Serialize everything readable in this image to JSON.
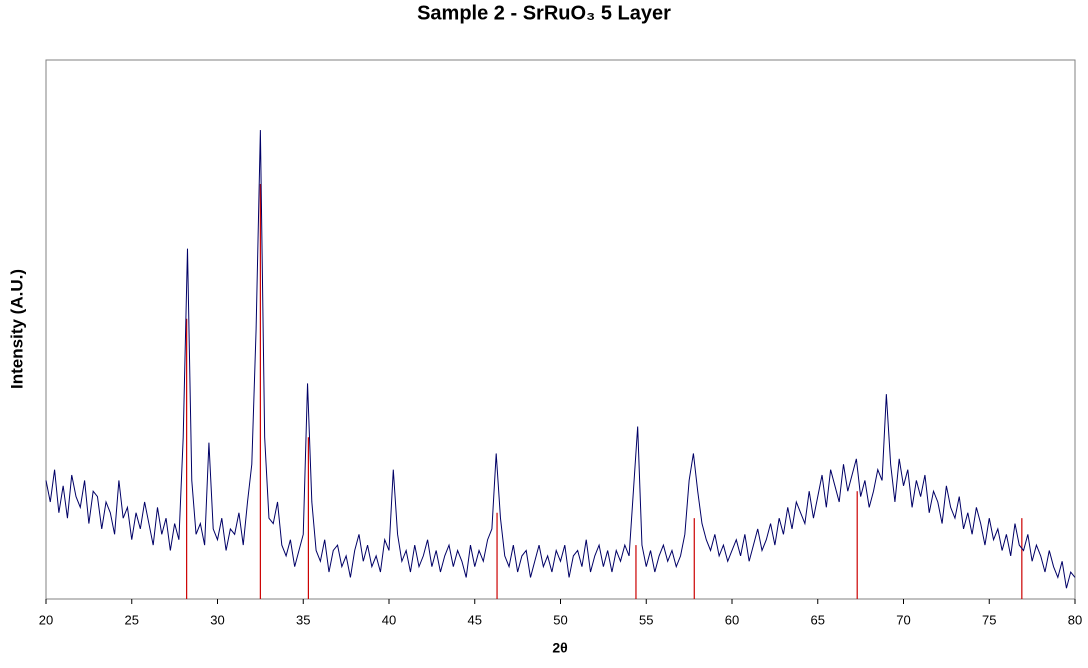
{
  "chart_data": {
    "type": "line",
    "title": "Sample 2 - SrRuO₃ 5 Layer",
    "x_label": "2θ",
    "y_label": "Intensity (A.U.)",
    "xlim": [
      20,
      80
    ],
    "xticks": [
      20,
      25,
      30,
      35,
      40,
      45,
      50,
      55,
      60,
      65,
      70,
      75,
      80
    ],
    "ylim": [
      0,
      100
    ],
    "x": [
      20,
      20.25,
      20.5,
      20.75,
      21,
      21.25,
      21.5,
      21.75,
      22,
      22.25,
      22.5,
      22.75,
      23,
      23.25,
      23.5,
      23.75,
      24,
      24.25,
      24.5,
      24.75,
      25,
      25.25,
      25.5,
      25.75,
      26,
      26.25,
      26.5,
      26.75,
      27,
      27.25,
      27.5,
      27.75,
      28,
      28.25,
      28.5,
      28.75,
      29,
      29.25,
      29.5,
      29.75,
      30,
      30.25,
      30.5,
      30.75,
      31,
      31.25,
      31.5,
      31.75,
      32,
      32.25,
      32.5,
      32.75,
      33,
      33.25,
      33.5,
      33.75,
      34,
      34.25,
      34.5,
      34.75,
      35,
      35.25,
      35.5,
      35.75,
      36,
      36.25,
      36.5,
      36.75,
      37,
      37.25,
      37.5,
      37.75,
      38,
      38.25,
      38.5,
      38.75,
      39,
      39.25,
      39.5,
      39.75,
      40,
      40.25,
      40.5,
      40.75,
      41,
      41.25,
      41.5,
      41.75,
      42,
      42.25,
      42.5,
      42.75,
      43,
      43.25,
      43.5,
      43.75,
      44,
      44.25,
      44.5,
      44.75,
      45,
      45.25,
      45.5,
      45.75,
      46,
      46.25,
      46.5,
      46.75,
      47,
      47.25,
      47.5,
      47.75,
      48,
      48.25,
      48.5,
      48.75,
      49,
      49.25,
      49.5,
      49.75,
      50,
      50.25,
      50.5,
      50.75,
      51,
      51.25,
      51.5,
      51.75,
      52,
      52.25,
      52.5,
      52.75,
      53,
      53.25,
      53.5,
      53.75,
      54,
      54.25,
      54.5,
      54.75,
      55,
      55.25,
      55.5,
      55.75,
      56,
      56.25,
      56.5,
      56.75,
      57,
      57.25,
      57.5,
      57.75,
      58,
      58.25,
      58.5,
      58.75,
      59,
      59.25,
      59.5,
      59.75,
      60,
      60.25,
      60.5,
      60.75,
      61,
      61.25,
      61.5,
      61.75,
      62,
      62.25,
      62.5,
      62.75,
      63,
      63.25,
      63.5,
      63.75,
      64,
      64.25,
      64.5,
      64.75,
      65,
      65.25,
      65.5,
      65.75,
      66,
      66.25,
      66.5,
      66.75,
      67,
      67.25,
      67.5,
      67.75,
      68,
      68.25,
      68.5,
      68.75,
      69,
      69.25,
      69.5,
      69.75,
      70,
      70.25,
      70.5,
      70.75,
      71,
      71.25,
      71.5,
      71.75,
      72,
      72.25,
      72.5,
      72.75,
      73,
      73.25,
      73.5,
      73.75,
      74,
      74.25,
      74.5,
      74.75,
      75,
      75.25,
      75.5,
      75.75,
      76,
      76.25,
      76.5,
      76.75,
      77,
      77.25,
      77.5,
      77.75,
      78,
      78.25,
      78.5,
      78.75,
      79,
      79.25,
      79.5,
      79.75,
      80
    ],
    "series": [
      {
        "color": "#000066",
        "values": [
          22,
          18,
          24,
          16,
          21,
          15,
          23,
          19,
          17,
          22,
          14,
          20,
          19,
          13,
          18,
          16,
          12,
          22,
          15,
          17,
          11,
          16,
          13,
          18,
          14,
          10,
          17,
          12,
          15,
          9,
          14,
          11,
          30,
          65,
          22,
          12,
          14,
          10,
          29,
          13,
          11,
          15,
          9,
          13,
          12,
          16,
          10,
          18,
          25,
          50,
          87,
          30,
          15,
          14,
          18,
          10,
          8,
          11,
          6,
          9,
          12,
          40,
          18,
          9,
          7,
          11,
          5,
          9,
          10,
          6,
          8,
          4,
          9,
          12,
          7,
          10,
          6,
          8,
          5,
          11,
          9,
          24,
          12,
          7,
          9,
          5,
          10,
          6,
          8,
          11,
          6,
          9,
          5,
          8,
          10,
          6,
          9,
          7,
          4,
          10,
          6,
          9,
          7,
          11,
          13,
          27,
          15,
          8,
          6,
          10,
          5,
          8,
          9,
          4,
          7,
          10,
          6,
          8,
          5,
          9,
          7,
          10,
          4,
          8,
          9,
          6,
          11,
          5,
          8,
          10,
          6,
          9,
          5,
          9,
          7,
          10,
          8,
          20,
          32,
          10,
          6,
          9,
          5,
          8,
          10,
          7,
          9,
          6,
          8,
          12,
          22,
          27,
          20,
          14,
          11,
          9,
          12,
          8,
          10,
          7,
          9,
          11,
          8,
          12,
          7,
          10,
          13,
          9,
          11,
          14,
          10,
          15,
          12,
          17,
          13,
          18,
          16,
          14,
          20,
          15,
          19,
          23,
          17,
          24,
          21,
          18,
          25,
          20,
          23,
          26,
          19,
          22,
          17,
          20,
          24,
          22,
          38,
          25,
          18,
          26,
          21,
          24,
          17,
          22,
          19,
          23,
          16,
          20,
          18,
          14,
          21,
          17,
          15,
          19,
          13,
          16,
          12,
          17,
          14,
          10,
          15,
          11,
          13,
          9,
          12,
          8,
          14,
          10,
          9,
          12,
          7,
          10,
          8,
          5,
          9,
          6,
          4,
          7,
          2,
          5,
          4
        ]
      }
    ],
    "reference_peaks": {
      "color": "#cc0000",
      "x": [
        28.2,
        32.5,
        35.3,
        46.3,
        54.4,
        57.8,
        67.3,
        76.9
      ],
      "values": [
        52,
        77,
        30,
        16,
        10,
        15,
        20,
        15
      ]
    }
  }
}
